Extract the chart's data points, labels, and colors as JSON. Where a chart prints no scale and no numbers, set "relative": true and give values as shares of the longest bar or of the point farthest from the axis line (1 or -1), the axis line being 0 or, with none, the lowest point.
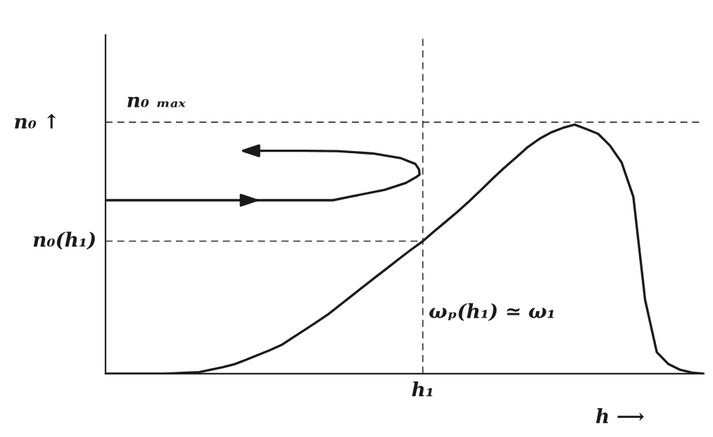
{
  "chart_data": {
    "type": "line",
    "relative": true,
    "xlabel": "h ⟶",
    "ylabel": "n₀ ↑",
    "categories": [
      null,
      null,
      null,
      null,
      null,
      null,
      null,
      null,
      null,
      null,
      null,
      null,
      null,
      null,
      null,
      null,
      null,
      null,
      null,
      null,
      null,
      null,
      null,
      null,
      null,
      null,
      null,
      null,
      null,
      null,
      null,
      null,
      null,
      null,
      null,
      null,
      null,
      null,
      null,
      null,
      null,
      null,
      null,
      null,
      null,
      null,
      null,
      null,
      null,
      null,
      null,
      null
    ],
    "series": [
      {
        "color": "#1a1a1a",
        "values": [
          0,
          0,
          0,
          0,
          0,
          0,
          0.002,
          0.004,
          0.006,
          0.016,
          0.026,
          0.038,
          0.056,
          0.075,
          0.094,
          0.115,
          0.146,
          0.176,
          0.207,
          0.239,
          0.276,
          0.313,
          0.35,
          0.387,
          0.423,
          0.46,
          0.496,
          0.53,
          0.571,
          0.61,
          0.65,
          0.692,
          0.737,
          0.783,
          0.827,
          0.868,
          0.91,
          0.943,
          0.969,
          0.987,
          1.0,
          0.982,
          0.963,
          0.916,
          0.848,
          0.71,
          0.297,
          0.086,
          0.038,
          0.015,
          0.004,
          0
        ]
      }
    ],
    "ref_lines": [
      {
        "axis": "y",
        "value": 1.01,
        "color": "#333333",
        "line_style": "dashed"
      },
      {
        "axis": "y",
        "value": 0.532,
        "label": "n₀(h₁)",
        "color": "#333333",
        "line_style": "dashed"
      }
    ],
    "annotations": [
      "n₀ ₘₐₓ",
      "ωₚ(h₁) ≃ ω₁",
      "h₁"
    ]
  }
}
